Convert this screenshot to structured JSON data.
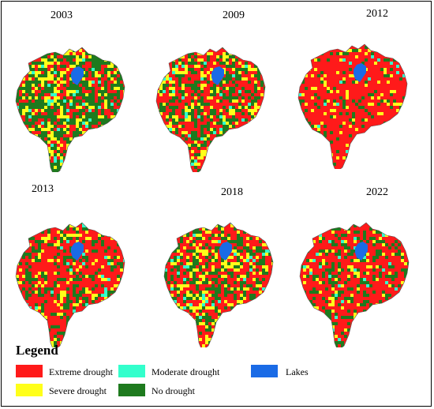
{
  "colors": {
    "extreme": "#ff1a1a",
    "severe": "#ffff1a",
    "moderate": "#33ffcc",
    "no": "#1e7a1e",
    "lake": "#1a6be6"
  },
  "maps": [
    {
      "year": "2003",
      "mix": {
        "extreme": 0.3,
        "severe": 0.2,
        "moderate": 0.04,
        "no": 0.46
      }
    },
    {
      "year": "2009",
      "mix": {
        "extreme": 0.46,
        "severe": 0.18,
        "moderate": 0.04,
        "no": 0.32
      }
    },
    {
      "year": "2012",
      "mix": {
        "extreme": 0.78,
        "severe": 0.08,
        "moderate": 0.02,
        "no": 0.12
      }
    },
    {
      "year": "2013",
      "mix": {
        "extreme": 0.58,
        "severe": 0.14,
        "moderate": 0.03,
        "no": 0.25
      }
    },
    {
      "year": "2018",
      "mix": {
        "extreme": 0.44,
        "severe": 0.2,
        "moderate": 0.04,
        "no": 0.32
      }
    },
    {
      "year": "2022",
      "mix": {
        "extreme": 0.62,
        "severe": 0.12,
        "moderate": 0.03,
        "no": 0.23
      }
    }
  ],
  "legend": {
    "title": "Legend",
    "items": [
      {
        "key": "extreme",
        "label": "Extreme drought"
      },
      {
        "key": "moderate",
        "label": "Moderate drought"
      },
      {
        "key": "lake",
        "label": "Lakes"
      },
      {
        "key": "severe",
        "label": "Severe drought"
      },
      {
        "key": "no",
        "label": "No drought"
      }
    ]
  }
}
